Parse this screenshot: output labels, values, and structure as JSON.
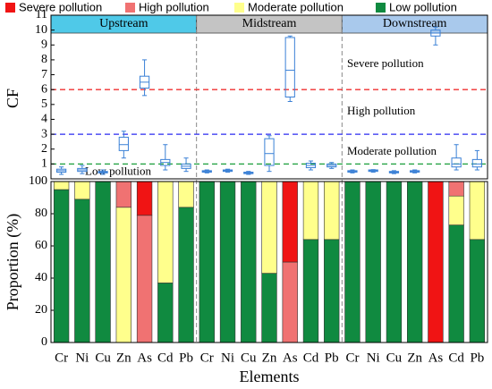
{
  "chart_data": [
    {
      "type": "box",
      "ylabel": "CF",
      "ylim": [
        0,
        11
      ],
      "yticks": [
        1,
        2,
        3,
        4,
        5,
        6,
        7,
        8,
        9,
        10,
        11
      ],
      "regions": [
        {
          "name": "Upstream",
          "color": "#4fc9e8"
        },
        {
          "name": "Midstream",
          "color": "#c4c4c4"
        },
        {
          "name": "Downstream",
          "color": "#a9c9ec"
        }
      ],
      "color": "#3a80d6",
      "thresholds": [
        {
          "value": 1,
          "color": "#1a9e3a"
        },
        {
          "value": 3,
          "color": "#2a2af0"
        },
        {
          "value": 6,
          "color": "#f03030"
        }
      ],
      "annotations": [
        "Severe pollution",
        "High pollution",
        "Moderate pollution",
        "Low pollution"
      ],
      "boxes": [
        {
          "min": 0.3,
          "q1": 0.45,
          "median": 0.55,
          "q3": 0.65,
          "max": 0.8
        },
        {
          "min": 0.35,
          "q1": 0.5,
          "median": 0.6,
          "q3": 0.7,
          "max": 0.9
        },
        {
          "min": 0.3,
          "q1": 0.4,
          "median": 0.45,
          "q3": 0.5,
          "max": 0.6
        },
        {
          "min": 1.4,
          "q1": 1.9,
          "median": 2.3,
          "q3": 2.8,
          "max": 3.2
        },
        {
          "min": 5.6,
          "q1": 6.1,
          "median": 6.5,
          "q3": 6.9,
          "max": 8.0
        },
        {
          "min": 0.6,
          "q1": 0.9,
          "median": 1.1,
          "q3": 1.3,
          "max": 2.3
        },
        {
          "min": 0.5,
          "q1": 0.7,
          "median": 0.85,
          "q3": 1.0,
          "max": 1.4
        },
        {
          "min": 0.4,
          "q1": 0.45,
          "median": 0.5,
          "q3": 0.55,
          "max": 0.6
        },
        {
          "min": 0.45,
          "q1": 0.5,
          "median": 0.55,
          "q3": 0.6,
          "max": 0.65
        },
        {
          "min": 0.3,
          "q1": 0.35,
          "median": 0.4,
          "q3": 0.45,
          "max": 0.5
        },
        {
          "min": 0.5,
          "q1": 0.9,
          "median": 1.7,
          "q3": 2.7,
          "max": 2.9
        },
        {
          "min": 5.2,
          "q1": 5.5,
          "median": 7.3,
          "q3": 9.5,
          "max": 9.6
        },
        {
          "min": 0.6,
          "q1": 0.75,
          "median": 0.9,
          "q3": 1.05,
          "max": 1.2
        },
        {
          "min": 0.7,
          "q1": 0.8,
          "median": 0.9,
          "q3": 1.0,
          "max": 1.1
        },
        {
          "min": 0.4,
          "q1": 0.45,
          "median": 0.5,
          "q3": 0.55,
          "max": 0.6
        },
        {
          "min": 0.45,
          "q1": 0.5,
          "median": 0.55,
          "q3": 0.6,
          "max": 0.62
        },
        {
          "min": 0.35,
          "q1": 0.4,
          "median": 0.45,
          "q3": 0.5,
          "max": 0.55
        },
        {
          "min": 0.4,
          "q1": 0.45,
          "median": 0.5,
          "q3": 0.55,
          "max": 0.6
        },
        {
          "min": 9.0,
          "q1": 9.6,
          "median": 9.8,
          "q3": 10.0,
          "max": 10.2
        },
        {
          "min": 0.6,
          "q1": 0.8,
          "median": 1.0,
          "q3": 1.4,
          "max": 2.3
        },
        {
          "min": 0.6,
          "q1": 0.8,
          "median": 1.0,
          "q3": 1.3,
          "max": 1.9
        }
      ]
    },
    {
      "type": "bar",
      "stacked": true,
      "xlabel": "Elements",
      "ylabel": "Proportion (%)",
      "categories": [
        "Cr",
        "Ni",
        "Cu",
        "Zn",
        "As",
        "Cd",
        "Pb",
        "Cr",
        "Ni",
        "Cu",
        "Zn",
        "As",
        "Cd",
        "Pb",
        "Cr",
        "Ni",
        "Cu",
        "Zn",
        "As",
        "Cd",
        "Pb"
      ],
      "ylim": [
        0,
        100
      ],
      "yticks": [
        0,
        20,
        40,
        60,
        80,
        100
      ],
      "series": [
        {
          "name": "Severe pollution",
          "color": "#f01414",
          "values": [
            0,
            0,
            0,
            0,
            21,
            0,
            0,
            0,
            0,
            0,
            0,
            50,
            0,
            0,
            0,
            0,
            0,
            0,
            100,
            0,
            0
          ]
        },
        {
          "name": "High pollution",
          "color": "#f07272",
          "values": [
            0,
            0,
            0,
            16,
            79,
            0,
            0,
            0,
            0,
            0,
            0,
            50,
            0,
            0,
            0,
            0,
            0,
            0,
            0,
            9,
            0
          ]
        },
        {
          "name": "Moderate pollution",
          "color": "#ffff8c",
          "values": [
            5,
            11,
            0,
            84,
            0,
            63,
            16,
            0,
            0,
            0,
            57,
            0,
            36,
            36,
            0,
            0,
            0,
            0,
            0,
            18,
            36
          ]
        },
        {
          "name": "Low pollution",
          "color": "#108a40",
          "values": [
            95,
            89,
            100,
            0,
            0,
            37,
            84,
            100,
            100,
            100,
            43,
            0,
            64,
            64,
            100,
            100,
            100,
            100,
            0,
            73,
            64
          ]
        }
      ]
    }
  ]
}
